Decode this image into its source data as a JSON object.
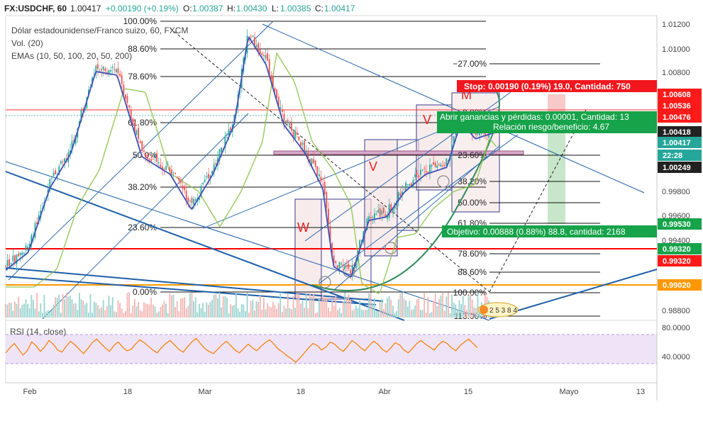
{
  "header": {
    "symbol": "FX:USDCHF, 60",
    "last": "1.00417",
    "change": "+0.00190 (+0.19%)",
    "open_label": "O:",
    "open": "1.00387",
    "high_label": "H:",
    "high": "1.00430",
    "low_label": "L:",
    "low": "1.00385",
    "close_label": "C:",
    "close": "1.00417"
  },
  "legend": {
    "title": "Dólar estadounidense/Franco suizo, 60, FXCM",
    "volume": "Vol. (20)",
    "emas": "EMAs (10, 50, 100, 20, 50, 200)"
  },
  "colors": {
    "up": "#26a69a",
    "down": "#ef5350",
    "fib": "#000000",
    "stop": "#ff0000",
    "target": "#00a000",
    "rsi": "#f57c00",
    "ema_fast": "#3f51b5",
    "ema_slow": "#8bc34a",
    "trend": "#1e5fa8"
  },
  "chart_data": {
    "type": "candlestick",
    "price_axis": {
      "ticks": [
        "1.01200",
        "1.01000",
        "1.00800",
        "0.99800",
        "0.99600",
        "0.99400",
        "0.98800"
      ],
      "range": [
        0.987,
        1.0128
      ]
    },
    "time_axis": {
      "ticks": [
        "Feb",
        "18",
        "Mar",
        "18",
        "Abr",
        "15",
        "Mayo",
        "13"
      ]
    },
    "price_tags": [
      {
        "value": "1.00608",
        "role": "stop-level",
        "color": "#ff0000"
      },
      {
        "value": "1.00536",
        "role": "level",
        "color": "#ff0000"
      },
      {
        "value": "1.00476",
        "role": "level",
        "color": "#ff0000"
      },
      {
        "value": "1.00418",
        "role": "bid",
        "color": "#000000"
      },
      {
        "value": "1.00417",
        "role": "last",
        "color": "#26a69a"
      },
      {
        "value": "22:28",
        "role": "countdown",
        "color": "#26a69a"
      },
      {
        "value": "1.00249",
        "role": "level",
        "color": "#000000"
      },
      {
        "value": "0.99530",
        "role": "target-level",
        "color": "#00a000"
      },
      {
        "value": "0.99320",
        "role": "level",
        "color": "#00a000"
      },
      {
        "value": "0.99320",
        "role": "support",
        "color": "#ff0000"
      },
      {
        "value": "0.99020",
        "role": "support",
        "color": "#ff9800"
      }
    ],
    "fib_left": {
      "levels": [
        "100.00%",
        "88.60%",
        "78.60%",
        "61.80%",
        "50.0%",
        "38.20%",
        "23.60%",
        "0.00%"
      ]
    },
    "fib_right": {
      "levels": [
        "−27.00%",
        "0.00%",
        "23.60%",
        "38.20%",
        "50.00%",
        "61.80%",
        "78.60%",
        "88.60%",
        "100.00%",
        "113.00%"
      ]
    },
    "position": {
      "stop": "Stop: 0.00190 (0.19%) 19.0, Cantidad: 750",
      "open_pl": "Abrir ganancias y pérdidas: 0.00001, Cantidad: 13",
      "risk_reward": "Relación riesgo/beneficio: 4.67",
      "target": "Objetivo: 0.00888 (0.88%) 88.8, cantidad: 2168"
    },
    "patterns": [
      "W",
      "V",
      "V",
      "M"
    ],
    "events_badge": "2 5 3 8 4",
    "rsi": {
      "label": "RSI (14, close)",
      "ticks": [
        "80.0000",
        "40.0000"
      ],
      "upper": 70,
      "lower": 30,
      "values": [
        45,
        52,
        58,
        50,
        42,
        48,
        60,
        55,
        47,
        53,
        62,
        57,
        49,
        46,
        54,
        61,
        56,
        50,
        44,
        51,
        59,
        64,
        58,
        52,
        47,
        55,
        60,
        53,
        48,
        50,
        57,
        63,
        59,
        54,
        49,
        45,
        52,
        58,
        62,
        56,
        50,
        46,
        53,
        60,
        65,
        58,
        51,
        47,
        44,
        50,
        56,
        61,
        55,
        49,
        45,
        51,
        57,
        52,
        48,
        54,
        59,
        63,
        57,
        50,
        46,
        41,
        37,
        32,
        38,
        45,
        52,
        58,
        55,
        49,
        53,
        60,
        57,
        51,
        47,
        54,
        62,
        58,
        52,
        48,
        55,
        61,
        57,
        50,
        46,
        52,
        59,
        56,
        49,
        45,
        51,
        58,
        62,
        57,
        53,
        49,
        56,
        61,
        58,
        52,
        48,
        55,
        60,
        64,
        58,
        52
      ]
    }
  }
}
